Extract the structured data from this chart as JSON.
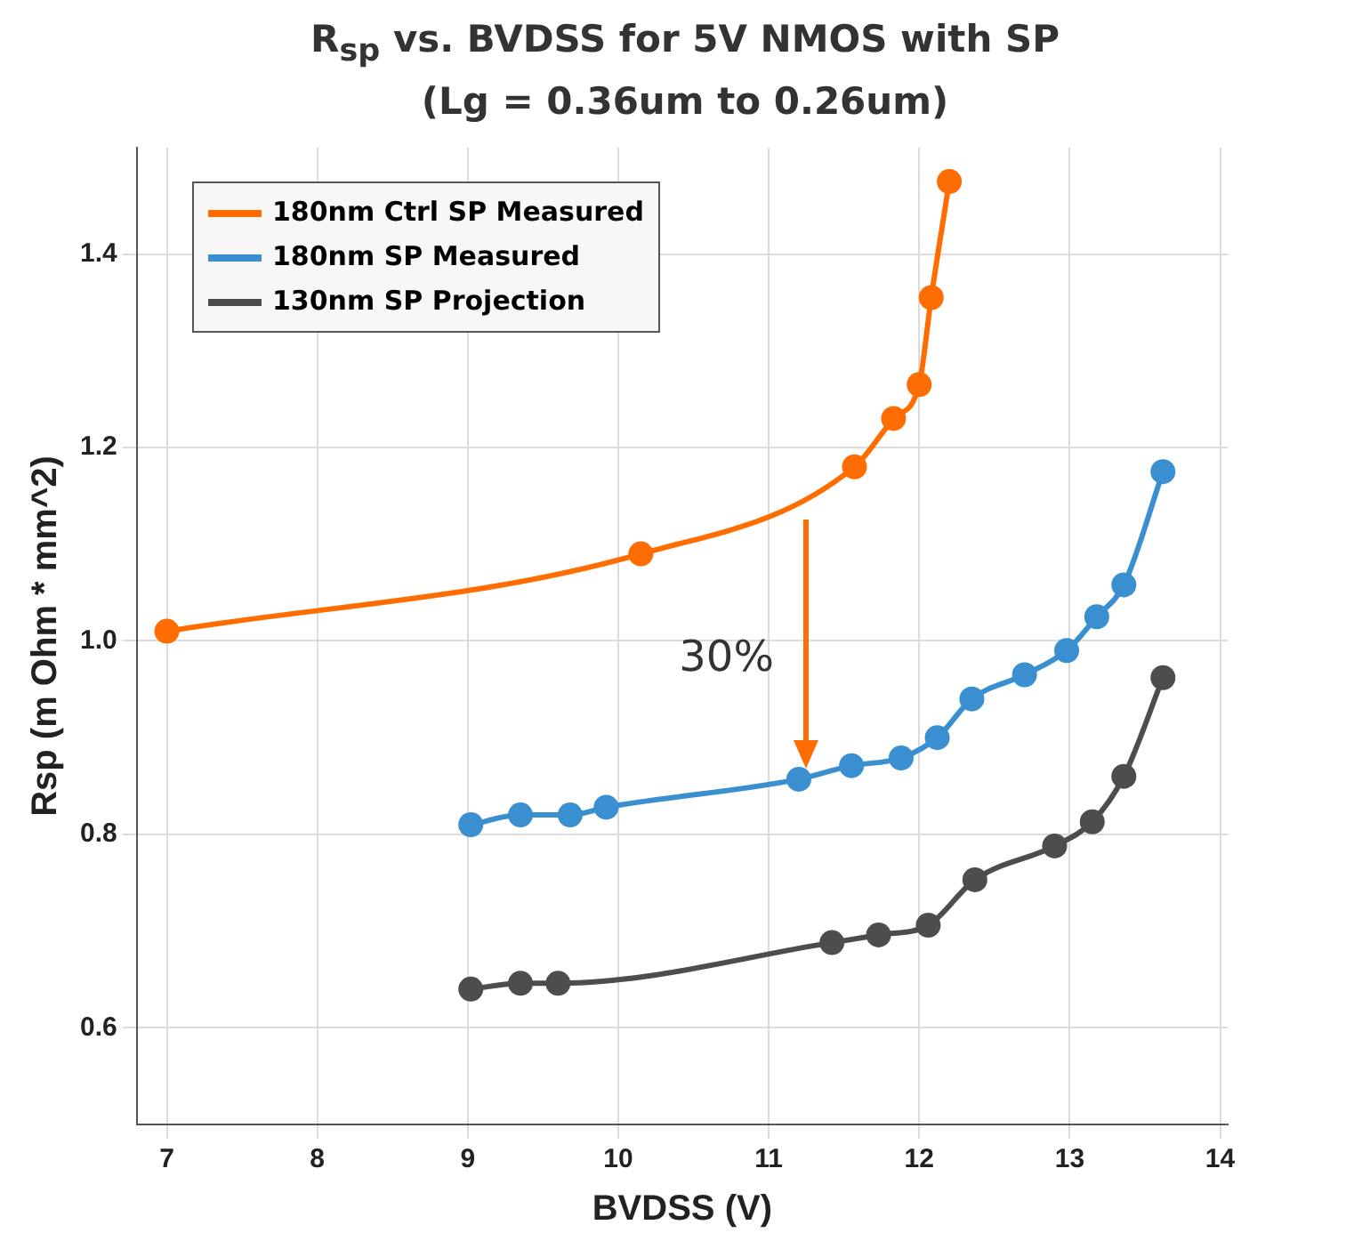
{
  "chart_data": {
    "type": "line",
    "title": "R$_{sp}$ vs. BVDSS for 5V NMOS with SP",
    "subtitle": "(Lg = 0.36um to 0.26um)",
    "xlabel": "BVDSS (V)",
    "ylabel": "Rsp (m Ohm * mm^2)",
    "xlim": [
      6.8,
      14.05
    ],
    "xticks": [
      7,
      8,
      9,
      10,
      11,
      12,
      13,
      14
    ],
    "ylim": [
      0.5,
      1.51
    ],
    "yticks": [
      0.6,
      0.8,
      {
        "value": 1,
        "label": "1.0"
      },
      1.2,
      1.4
    ],
    "grid": true,
    "legend": "top left",
    "marker": "circle",
    "line_style": "solid",
    "annotations": [
      "30%"
    ],
    "series": [
      {
        "name": "180nm Ctrl SP Measured",
        "color": "#ff6d00",
        "x": [
          7.0,
          10.15,
          11.57,
          11.83,
          12.0,
          12.08,
          12.2
        ],
        "values": [
          1.01,
          1.09,
          1.18,
          1.23,
          1.265,
          1.355,
          1.475
        ]
      },
      {
        "name": "180nm SP Measured",
        "color": "#3a8fd0",
        "x": [
          9.02,
          9.35,
          9.68,
          9.92,
          11.2,
          11.55,
          11.88,
          12.12,
          12.35,
          12.7,
          12.98,
          13.18,
          13.36,
          13.62
        ],
        "values": [
          0.81,
          0.82,
          0.82,
          0.828,
          0.857,
          0.871,
          0.879,
          0.9,
          0.94,
          0.965,
          0.99,
          1.025,
          1.058,
          1.175
        ]
      },
      {
        "name": "130nm SP Projection",
        "color": "#4d4d4d",
        "x": [
          9.02,
          9.35,
          9.6,
          11.42,
          11.73,
          12.06,
          12.37,
          12.9,
          13.15,
          13.36,
          13.62
        ],
        "values": [
          0.64,
          0.646,
          0.646,
          0.688,
          0.696,
          0.706,
          0.753,
          0.788,
          0.813,
          0.86,
          0.962
        ]
      }
    ]
  }
}
